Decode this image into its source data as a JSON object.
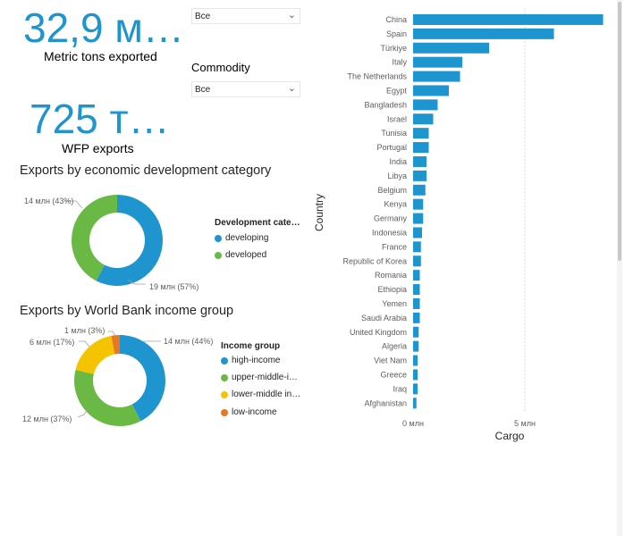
{
  "kpis": {
    "tons": {
      "value": "32,9 м…",
      "label": "Metric tons exported"
    },
    "wfp": {
      "value": "725 т…",
      "label": "WFP exports"
    }
  },
  "slicers": {
    "first": {
      "value": "Все"
    },
    "commodity": {
      "title": "Commodity",
      "value": "Все"
    }
  },
  "colors": {
    "accent": "#1f95cf",
    "bar": "#1f95cf",
    "developing": "#1f95cf",
    "developed": "#6ab944",
    "high_income": "#1f95cf",
    "upper_middle": "#6ab944",
    "lower_middle": "#f5c400",
    "low_income": "#e87722"
  },
  "dev_chart": {
    "title": "Exports by economic development category",
    "legend_title": "Development cate…",
    "label_developed": "14 млн (43%)",
    "label_developing": "19 млн (57%)",
    "legend_developing": "developing",
    "legend_developed": "developed"
  },
  "income_chart": {
    "title": "Exports by World Bank income group",
    "legend_title": "Income group",
    "label_high": "14 млн (44%)",
    "label_upper": "12 млн (37%)",
    "label_lower": "6 млн (17%)",
    "label_low": "1 млн (3%)",
    "legend_high": "high-income",
    "legend_upper": "upper-middle-i…",
    "legend_lower": "lower-middle in…",
    "legend_low": "low-income"
  },
  "chart_data": [
    {
      "type": "pie",
      "title": "Exports by economic development category",
      "legend_title": "Development cate…",
      "categories": [
        "developing",
        "developed"
      ],
      "values": [
        19,
        14
      ],
      "percent": [
        57,
        43
      ],
      "unit": "млн"
    },
    {
      "type": "pie",
      "title": "Exports by World Bank income group",
      "legend_title": "Income group",
      "categories": [
        "high-income",
        "upper-middle-i…",
        "lower-middle in…",
        "low-income"
      ],
      "values": [
        14,
        12,
        6,
        1
      ],
      "percent": [
        44,
        37,
        17,
        3
      ],
      "unit": "млн"
    },
    {
      "type": "bar",
      "orientation": "horizontal",
      "xlabel": "Cargo",
      "ylabel": "Country",
      "unit": "млн",
      "xlim": [
        0,
        8.6
      ],
      "xticks": [
        0,
        5
      ],
      "xtick_labels": [
        "0 млн",
        "5 млн"
      ],
      "categories": [
        "China",
        "Spain",
        "Türkiye",
        "Italy",
        "The Netherlands",
        "Egypt",
        "Bangladesh",
        "Israel",
        "Tunisia",
        "Portugal",
        "India",
        "Libya",
        "Belgium",
        "Kenya",
        "Germany",
        "Indonesia",
        "France",
        "Republic of Korea",
        "Romania",
        "Ethiopia",
        "Yemen",
        "Saudi Arabia",
        "United Kingdom",
        "Algeria",
        "Viet Nam",
        "Greece",
        "Iraq",
        "Afghanistan"
      ],
      "values": [
        8.5,
        6.3,
        3.4,
        2.2,
        2.1,
        1.6,
        1.1,
        0.9,
        0.7,
        0.7,
        0.6,
        0.6,
        0.55,
        0.45,
        0.45,
        0.4,
        0.35,
        0.35,
        0.3,
        0.3,
        0.3,
        0.3,
        0.25,
        0.25,
        0.2,
        0.2,
        0.2,
        0.15
      ]
    }
  ]
}
